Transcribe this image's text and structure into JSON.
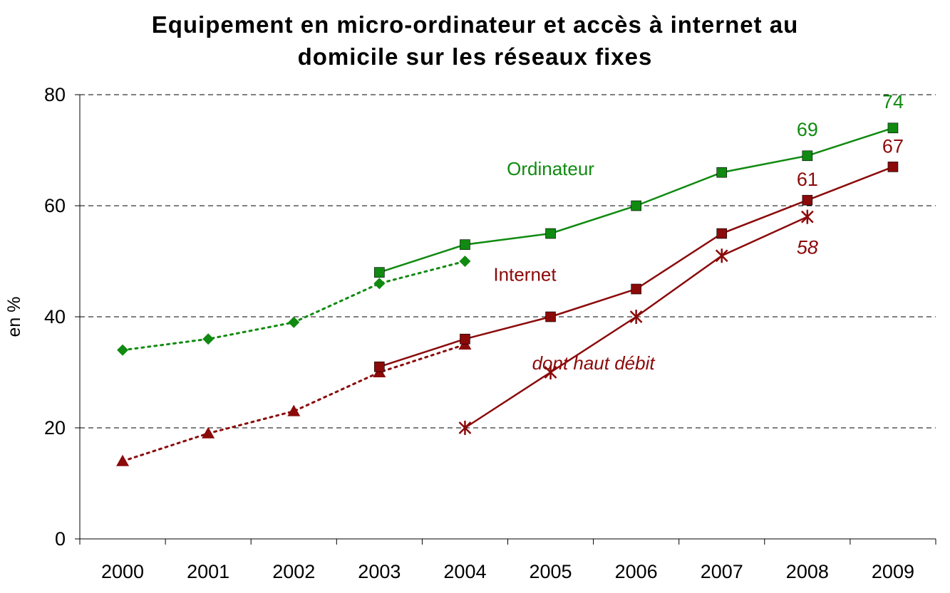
{
  "chart_data": {
    "type": "line",
    "title": "Equipement en micro-ordinateur et accès à internet au\ndomicile sur les réseaux fixes",
    "xlabel": "",
    "ylabel": "en %",
    "ylim": [
      0,
      80
    ],
    "yticks": [
      "0",
      "20",
      "40",
      "60",
      "80"
    ],
    "grid": "horizontal dashed",
    "categories": [
      "2000",
      "2001",
      "2002",
      "2003",
      "2004",
      "2005",
      "2006",
      "2007",
      "2008",
      "2009"
    ],
    "series": [
      {
        "name": "Ordinateur",
        "style": "dotted",
        "marker": "diamond",
        "color": "#108A10",
        "points": [
          {
            "x": "2000",
            "y": 34
          },
          {
            "x": "2001",
            "y": 36
          },
          {
            "x": "2002",
            "y": 39
          },
          {
            "x": "2003",
            "y": 46
          },
          {
            "x": "2004",
            "y": 50
          }
        ]
      },
      {
        "name": "Ordinateur",
        "style": "solid",
        "marker": "square",
        "color": "#108A10",
        "points": [
          {
            "x": "2003",
            "y": 48
          },
          {
            "x": "2004",
            "y": 53
          },
          {
            "x": "2005",
            "y": 55
          },
          {
            "x": "2006",
            "y": 60
          },
          {
            "x": "2007",
            "y": 66
          },
          {
            "x": "2008",
            "y": 69,
            "label": "69"
          },
          {
            "x": "2009",
            "y": 74,
            "label": "74"
          }
        ]
      },
      {
        "name": "Internet",
        "style": "dotted",
        "marker": "triangle",
        "color": "#8B0A0A",
        "points": [
          {
            "x": "2000",
            "y": 14
          },
          {
            "x": "2001",
            "y": 19
          },
          {
            "x": "2002",
            "y": 23
          },
          {
            "x": "2003",
            "y": 30
          },
          {
            "x": "2004",
            "y": 35
          }
        ]
      },
      {
        "name": "Internet",
        "style": "solid",
        "marker": "square",
        "color": "#8B0A0A",
        "points": [
          {
            "x": "2003",
            "y": 31
          },
          {
            "x": "2004",
            "y": 36
          },
          {
            "x": "2005",
            "y": 40
          },
          {
            "x": "2006",
            "y": 45
          },
          {
            "x": "2007",
            "y": 55
          },
          {
            "x": "2008",
            "y": 61,
            "label": "61"
          },
          {
            "x": "2009",
            "y": 67,
            "label": "67"
          }
        ]
      },
      {
        "name": "dont haut débit",
        "style": "solid",
        "marker": "star",
        "color": "#8B0A0A",
        "points": [
          {
            "x": "2004",
            "y": 20
          },
          {
            "x": "2005",
            "y": 30
          },
          {
            "x": "2006",
            "y": 40
          },
          {
            "x": "2007",
            "y": 51
          },
          {
            "x": "2008",
            "y": 58,
            "label": "58"
          }
        ]
      }
    ],
    "annotations": [
      {
        "text": "Ordinateur",
        "color": "#108A10",
        "italic": false,
        "anchor": {
          "x": 2005.0,
          "y": 65.5
        }
      },
      {
        "text": "Internet",
        "color": "#8B0A0A",
        "italic": false,
        "anchor": {
          "x": 2004.7,
          "y": 46.5
        }
      },
      {
        "text": "dont haut débit",
        "color": "#8B0A0A",
        "italic": true,
        "anchor": {
          "x": 2005.5,
          "y": 30.5
        }
      }
    ]
  }
}
